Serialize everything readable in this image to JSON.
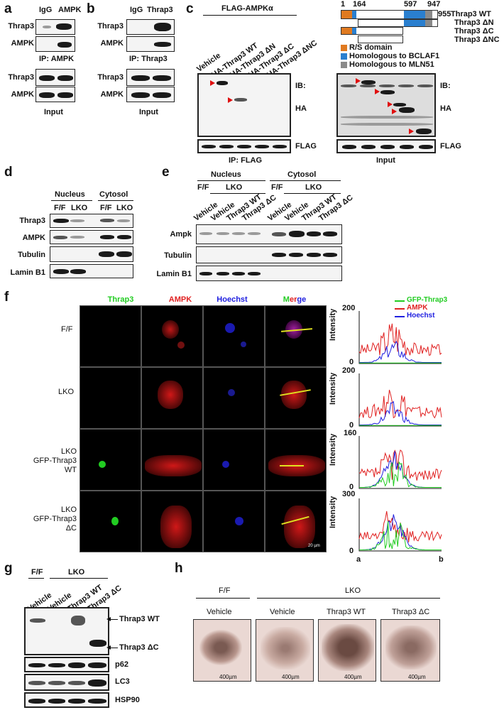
{
  "panels": {
    "a": "a",
    "b": "b",
    "c": "c",
    "d": "d",
    "e": "e",
    "f": "f",
    "g": "g",
    "h": "h"
  },
  "a": {
    "cols": [
      "IgG",
      "AMPK"
    ],
    "rows_ip": [
      "Thrap3",
      "AMPK"
    ],
    "ip": "IP: AMPK",
    "rows_in": [
      "Thrap3",
      "AMPK"
    ],
    "input": "Input"
  },
  "b": {
    "cols": [
      "IgG",
      "Thrap3"
    ],
    "rows_ip": [
      "Thrap3",
      "AMPK"
    ],
    "ip": "IP: Thrap3",
    "rows_in": [
      "Thrap3",
      "AMPK"
    ],
    "input": "Input"
  },
  "c": {
    "header": "FLAG-AMPKα",
    "lanes": [
      "Vehicle",
      "HA-Thrap3 WT",
      "HA-Thrap3 ΔN",
      "HA-Thrap3 ΔC",
      "HA-Thrap3 ΔNC"
    ],
    "ib": "IB:",
    "ha": "HA",
    "flag": "FLAG",
    "ip": "IP: FLAG",
    "input": "Input",
    "domain_numbers": [
      "1",
      "164",
      "597",
      "947",
      "955"
    ],
    "constructs": [
      "Thrap3 WT",
      "Thrap3 ΔN",
      "Thrap3 ΔC",
      "Thrap3 ΔNC"
    ],
    "legend": [
      "R/S domain",
      "Homologous to BCLAF1",
      "Homologous to MLN51"
    ],
    "legend_colors": [
      "#e07a20",
      "#2a7fcf",
      "#8a8a8a"
    ]
  },
  "d": {
    "groups": [
      "Nucleus",
      "Cytosol"
    ],
    "lanes": [
      "F/F",
      "LKO",
      "F/F",
      "LKO"
    ],
    "rows": [
      "Thrap3",
      "AMPK",
      "Tubulin",
      "Lamin B1"
    ]
  },
  "e": {
    "groups": [
      "Nucleus",
      "Cytosol"
    ],
    "ff": "F/F",
    "lko": "LKO",
    "lanes": [
      "Vehicle",
      "Vehicle",
      "Thrap3 WT",
      "Thrap3 ΔC",
      "Vehicle",
      "Vehicle",
      "Thrap3 WT",
      "Thrap3 ΔC"
    ],
    "rows": [
      "Ampk",
      "Tubulin",
      "Lamin B1"
    ]
  },
  "f": {
    "channels": [
      "Thrap3",
      "AMPK",
      "Hoechst",
      "Merge"
    ],
    "channel_colors": [
      "#22cc22",
      "#e02020",
      "#2020e0",
      "#22cc22"
    ],
    "merge_parts": [
      "M",
      "e",
      "r",
      "g",
      "e"
    ],
    "rows": [
      "F/F",
      "LKO",
      "LKO\nGFP-Thrap3  WT",
      "LKO\nGFP-Thrap3  ΔC"
    ],
    "scalebar": "20 µm",
    "legend": [
      "GFP-Thrap3",
      "AMPK",
      "Hoechst"
    ],
    "ylabel": "Intensity",
    "ymax": [
      "200",
      "200",
      "160",
      "300"
    ],
    "y0": "0",
    "xlabels": [
      "a",
      "b"
    ]
  },
  "g": {
    "ff": "F/F",
    "lko": "LKO",
    "lanes": [
      "Vehicle",
      "Vehicle",
      "Thrap3 WT",
      "Thrap3 ΔC"
    ],
    "arrows": [
      "Thrap3 WT",
      "Thrap3 ΔC"
    ],
    "rows": [
      "p62",
      "LC3",
      "HSP90"
    ]
  },
  "h": {
    "ff": "F/F",
    "lko": "LKO",
    "conds": [
      "Vehicle",
      "Vehicle",
      "Thrap3 WT",
      "Thrap3 ΔC"
    ],
    "scale": "400µm"
  },
  "chart_data": [
    {
      "type": "line",
      "title": "F/F",
      "ylabel": "Intensity",
      "ylim": [
        0,
        200
      ],
      "x": [
        "a",
        "b"
      ],
      "series": [
        {
          "name": "GFP-Thrap3"
        },
        {
          "name": "AMPK"
        },
        {
          "name": "Hoechst"
        }
      ]
    },
    {
      "type": "line",
      "title": "LKO",
      "ylabel": "Intensity",
      "ylim": [
        0,
        200
      ],
      "x": [
        "a",
        "b"
      ],
      "series": [
        {
          "name": "GFP-Thrap3"
        },
        {
          "name": "AMPK"
        },
        {
          "name": "Hoechst"
        }
      ]
    },
    {
      "type": "line",
      "title": "LKO GFP-Thrap3 WT",
      "ylabel": "Intensity",
      "ylim": [
        0,
        160
      ],
      "x": [
        "a",
        "b"
      ],
      "series": [
        {
          "name": "GFP-Thrap3"
        },
        {
          "name": "AMPK"
        },
        {
          "name": "Hoechst"
        }
      ]
    },
    {
      "type": "line",
      "title": "LKO GFP-Thrap3 ΔC",
      "ylabel": "Intensity",
      "ylim": [
        0,
        300
      ],
      "x": [
        "a",
        "b"
      ],
      "series": [
        {
          "name": "GFP-Thrap3"
        },
        {
          "name": "AMPK"
        },
        {
          "name": "Hoechst"
        }
      ]
    }
  ]
}
